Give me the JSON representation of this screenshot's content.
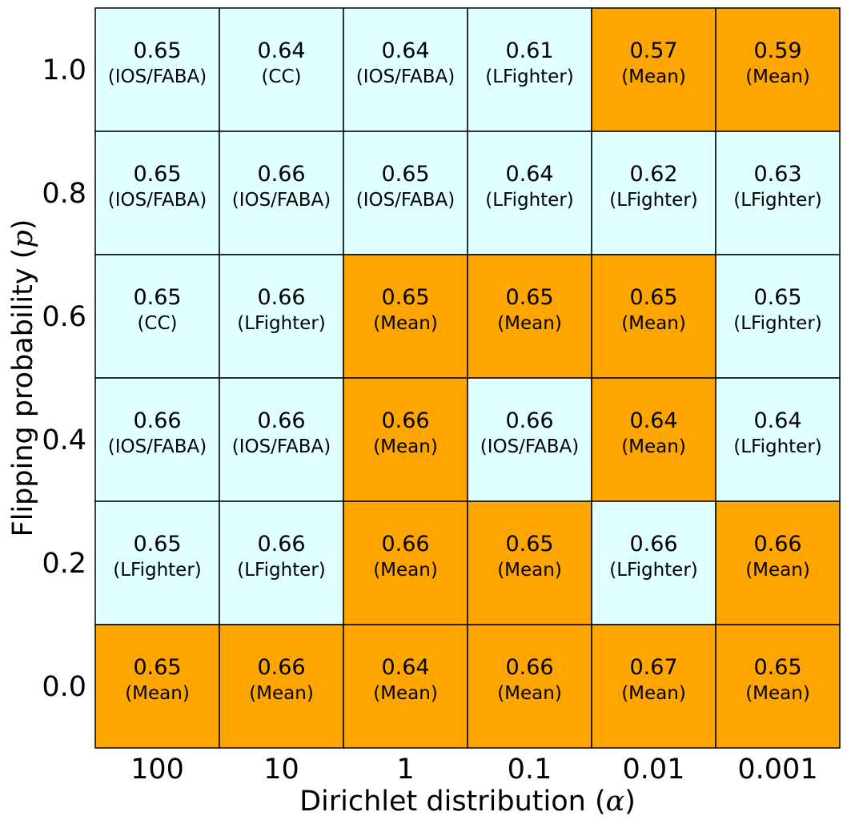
{
  "chart_data": {
    "type": "heatmap",
    "xlabel": {
      "prefix": "Dirichlet distribution (",
      "symbol": "α",
      "suffix": ")"
    },
    "ylabel": {
      "prefix": "Flipping probability (",
      "symbol": "p",
      "suffix": ")"
    },
    "x_categories": [
      "100",
      "10",
      "1",
      "0.1",
      "0.01",
      "0.001"
    ],
    "y_categories": [
      "1.0",
      "0.8",
      "0.6",
      "0.4",
      "0.2",
      "0.0"
    ],
    "cells": [
      [
        {
          "value": "0.65",
          "label": "(IOS/FABA)"
        },
        {
          "value": "0.64",
          "label": "(CC)"
        },
        {
          "value": "0.64",
          "label": "(IOS/FABA)"
        },
        {
          "value": "0.61",
          "label": "(LFighter)"
        },
        {
          "value": "0.57",
          "label": "(Mean)"
        },
        {
          "value": "0.59",
          "label": "(Mean)"
        }
      ],
      [
        {
          "value": "0.65",
          "label": "(IOS/FABA)"
        },
        {
          "value": "0.66",
          "label": "(IOS/FABA)"
        },
        {
          "value": "0.65",
          "label": "(IOS/FABA)"
        },
        {
          "value": "0.64",
          "label": "(LFighter)"
        },
        {
          "value": "0.62",
          "label": "(LFighter)"
        },
        {
          "value": "0.63",
          "label": "(LFighter)"
        }
      ],
      [
        {
          "value": "0.65",
          "label": "(CC)"
        },
        {
          "value": "0.66",
          "label": "(LFighter)"
        },
        {
          "value": "0.65",
          "label": "(Mean)"
        },
        {
          "value": "0.65",
          "label": "(Mean)"
        },
        {
          "value": "0.65",
          "label": "(Mean)"
        },
        {
          "value": "0.65",
          "label": "(LFighter)"
        }
      ],
      [
        {
          "value": "0.66",
          "label": "(IOS/FABA)"
        },
        {
          "value": "0.66",
          "label": "(IOS/FABA)"
        },
        {
          "value": "0.66",
          "label": "(Mean)"
        },
        {
          "value": "0.66",
          "label": "(IOS/FABA)"
        },
        {
          "value": "0.64",
          "label": "(Mean)"
        },
        {
          "value": "0.64",
          "label": "(LFighter)"
        }
      ],
      [
        {
          "value": "0.65",
          "label": "(LFighter)"
        },
        {
          "value": "0.66",
          "label": "(LFighter)"
        },
        {
          "value": "0.66",
          "label": "(Mean)"
        },
        {
          "value": "0.65",
          "label": "(Mean)"
        },
        {
          "value": "0.66",
          "label": "(LFighter)"
        },
        {
          "value": "0.66",
          "label": "(Mean)"
        }
      ],
      [
        {
          "value": "0.65",
          "label": "(Mean)"
        },
        {
          "value": "0.66",
          "label": "(Mean)"
        },
        {
          "value": "0.64",
          "label": "(Mean)"
        },
        {
          "value": "0.66",
          "label": "(Mean)"
        },
        {
          "value": "0.67",
          "label": "(Mean)"
        },
        {
          "value": "0.65",
          "label": "(Mean)"
        }
      ]
    ],
    "colors": {
      "mean": "#FFA500",
      "other": "#E0FFFF",
      "border": "#000000"
    }
  }
}
